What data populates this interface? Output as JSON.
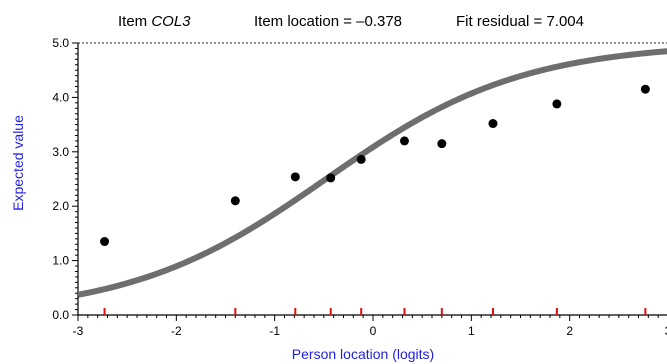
{
  "chart_data": {
    "type": "scatter",
    "header": {
      "item_prefix": "Item ",
      "item_name": "COL3",
      "location": "Item location = –0.378",
      "residual": "Fit residual = 7.004"
    },
    "xlabel": "Person location (logits)",
    "ylabel": "Expected value",
    "xlim": [
      -3,
      3
    ],
    "ylim": [
      0,
      5
    ],
    "x_ticks": [
      "-3",
      "-2",
      "-1",
      "0",
      "1",
      "2",
      "3"
    ],
    "y_ticks": [
      "0.0",
      "1.0",
      "2.0",
      "3.0",
      "4.0",
      "5.0"
    ],
    "curve": {
      "item_location": -0.378,
      "max_score": 5,
      "color": "#6e6e6e"
    },
    "series": [
      {
        "x": [
          -2.73,
          -1.4,
          -0.79,
          -0.43,
          -0.12,
          0.32,
          0.7,
          1.22,
          1.87,
          2.77
        ],
        "y": [
          1.35,
          2.1,
          2.54,
          2.52,
          2.86,
          3.2,
          3.15,
          3.52,
          3.88,
          4.15
        ]
      }
    ],
    "class_marks": [
      -2.73,
      -1.4,
      -0.79,
      -0.43,
      -0.12,
      0.32,
      0.7,
      1.22,
      1.87,
      2.77
    ],
    "colors": {
      "axis_label": "#1f1fe0",
      "marker": "#000000",
      "class_mark": "#e01010"
    }
  }
}
